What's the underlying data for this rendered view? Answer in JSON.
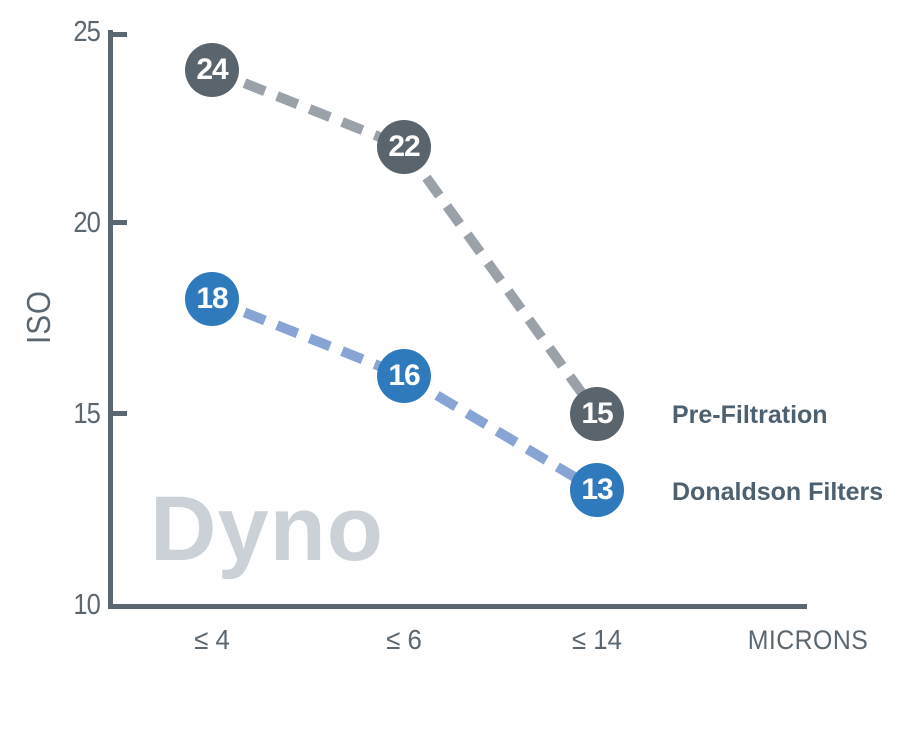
{
  "chart_data": {
    "type": "line",
    "line_style": "dashed",
    "marker": "circle-with-value",
    "categories": [
      "≤ 4",
      "≤ 6",
      "≤ 14"
    ],
    "x_unit_label": "MICRONS",
    "ylabel": "ISO",
    "yticks": [
      "25",
      "20",
      "15",
      "10"
    ],
    "ytick_values": [
      25,
      20,
      15,
      10
    ],
    "ylim": [
      10,
      25
    ],
    "grid": false,
    "legend_position": "right-of-last-point",
    "series": [
      {
        "name": "Pre-Filtration",
        "values": [
          24,
          22,
          15
        ],
        "marker_color": "#59646d",
        "line_color": "#9aa1a8"
      },
      {
        "name": "Donaldson Filters",
        "values": [
          18,
          16,
          13
        ],
        "marker_color": "#2e7abc",
        "line_color": "#87a4d5"
      }
    ],
    "watermark": "Dyno",
    "colors": {
      "axis": "#5b6770",
      "tick_label": "#5b6770",
      "legend_text": "#4d6070",
      "watermark": "#cbd1d6",
      "marker_value_text": "#ffffff",
      "background": "#ffffff"
    }
  }
}
